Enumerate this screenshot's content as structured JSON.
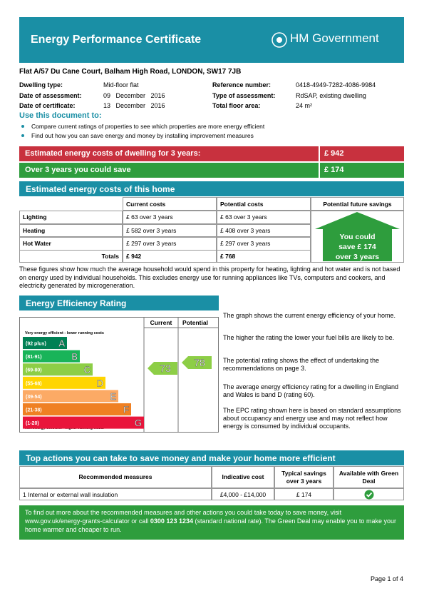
{
  "header": {
    "title": "Energy Performance Certificate",
    "logo": "HM Government"
  },
  "address": "Flat A/57 Du Cane Court, Balham High Road, LONDON, SW17 7JB",
  "details": {
    "left": [
      [
        "Dwelling type:",
        "Mid-floor flat"
      ],
      [
        "Date of assessment:",
        "09   December   2016"
      ],
      [
        "Date of certificate:",
        "13   December   2016"
      ]
    ],
    "right": [
      [
        "Reference number:",
        "0418-4949-7282-4086-9984"
      ],
      [
        "Type of assessment:",
        "RdSAP, existing dwelling"
      ],
      [
        "Total floor area:",
        "24 m²"
      ]
    ]
  },
  "use": {
    "heading": "Use this document to:",
    "bullets": [
      "Compare current ratings of properties to see which properties are more energy efficient",
      "Find out how you can save energy and money by installing improvement measures"
    ]
  },
  "summary": [
    [
      "Estimated energy costs of dwelling for 3 years:",
      "£ 942"
    ],
    [
      "Over 3 years you could save",
      "£ 174"
    ]
  ],
  "costs": {
    "heading": "Estimated energy costs of this home",
    "columns": [
      "Current costs",
      "Potential costs",
      "Potential future savings"
    ],
    "rows": [
      [
        "Lighting",
        "£ 63 over 3 years",
        "£ 63 over 3 years"
      ],
      [
        "Heating",
        "£ 582 over 3 years",
        "£ 408 over 3 years"
      ],
      [
        "Hot Water",
        "£ 297 over 3 years",
        "£ 297 over 3 years"
      ]
    ],
    "totals": [
      "Totals",
      "£ 942",
      "£ 768"
    ],
    "savings": [
      "You could",
      "save £ 174",
      "over 3 years"
    ],
    "note": "These figures show how much the average household would spend in this property for heating, lighting and hot water and is not based on energy used by individual households. This excludes energy use for running appliances like TVs, computers and cookers, and electricity generated by microgeneration."
  },
  "rating": {
    "heading": "Energy Efficiency Rating",
    "columns": [
      "Current",
      "Potential"
    ],
    "top_note": "Very energy efficient - lower running costs",
    "bottom_note": "Not energy efficient - higher running costs",
    "bands": [
      {
        "range": "(92 plus)",
        "letter": "A"
      },
      {
        "range": "(81-91)",
        "letter": "B"
      },
      {
        "range": "(69-80)",
        "letter": "C"
      },
      {
        "range": "(55-68)",
        "letter": "D"
      },
      {
        "range": "(39-54)",
        "letter": "E"
      },
      {
        "range": "(21-38)",
        "letter": "F"
      },
      {
        "range": "(1-20)",
        "letter": "G"
      }
    ],
    "current": 73,
    "potential": 78,
    "paragraphs": [
      "The graph shows the current energy efficiency of your home.",
      "The higher the rating the lower your fuel bills are likely to be.",
      "The potential rating shows the effect of undertaking the recommendations on page 3.",
      "The average energy efficiency rating for a dwelling in England and Wales is band D (rating 60).",
      "The EPC rating shown here is based on standard assumptions about occupancy and energy use and may not reflect how energy is consumed by individual occupants."
    ]
  },
  "actions": {
    "heading": "Top actions you can take to save money and make your home more efficient",
    "columns": [
      "Recommended measures",
      "Indicative cost",
      "Typical savings over 3 years",
      "Available with Green Deal"
    ],
    "rows": [
      [
        "1  Internal or external wall insulation",
        "£4,000 - £14,000",
        "£ 174"
      ]
    ]
  },
  "footer_note": [
    "To find out more about the recommended measures and other actions you could take today to save money, visit www.gov.uk/energy-grants-calculator or call ",
    "0300 123 1234",
    " (standard national rate). The Green Deal may enable you to make your home warmer and cheaper to run."
  ],
  "page": "Page 1 of 4"
}
